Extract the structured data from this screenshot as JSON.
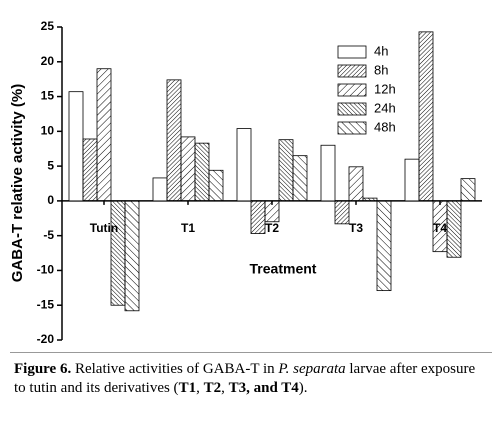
{
  "chart_data": {
    "type": "bar",
    "y_label": "GABA-T relative activity (%)",
    "x_label": "Treatment",
    "categories": [
      "Tutin",
      "T1",
      "T2",
      "T3",
      "T4"
    ],
    "series": [
      {
        "name": "4h",
        "color": "#000000",
        "hatch": "none",
        "values": [
          15.7,
          3.3,
          10.4,
          8.0,
          6.0
        ]
      },
      {
        "name": "8h",
        "color": "#000000",
        "hatch": "dense-forward",
        "values": [
          8.9,
          17.4,
          -4.7,
          -3.3,
          24.3
        ]
      },
      {
        "name": "12h",
        "color": "#000000",
        "hatch": "forward",
        "values": [
          19.0,
          9.2,
          -3.0,
          4.9,
          -7.3
        ]
      },
      {
        "name": "24h",
        "color": "#000000",
        "hatch": "dense-backward",
        "values": [
          -15.0,
          8.3,
          8.8,
          0.4,
          -8.1
        ]
      },
      {
        "name": "48h",
        "color": "#000000",
        "hatch": "backward",
        "values": [
          -15.8,
          4.4,
          6.5,
          -12.9,
          3.2
        ]
      }
    ],
    "ylim": [
      -20,
      25
    ],
    "yticks": [
      -20,
      -15,
      -10,
      -5,
      0,
      5,
      10,
      15,
      20,
      25
    ],
    "legend": "top-right"
  },
  "caption": [
    "Figure 6.",
    " Relative activities of GABA-T in ",
    "P. separata",
    " larvae after exposure to tutin and its derivatives (",
    "T1",
    ", ",
    "T2",
    ", ",
    "T3",
    ", and T4",
    ")."
  ]
}
